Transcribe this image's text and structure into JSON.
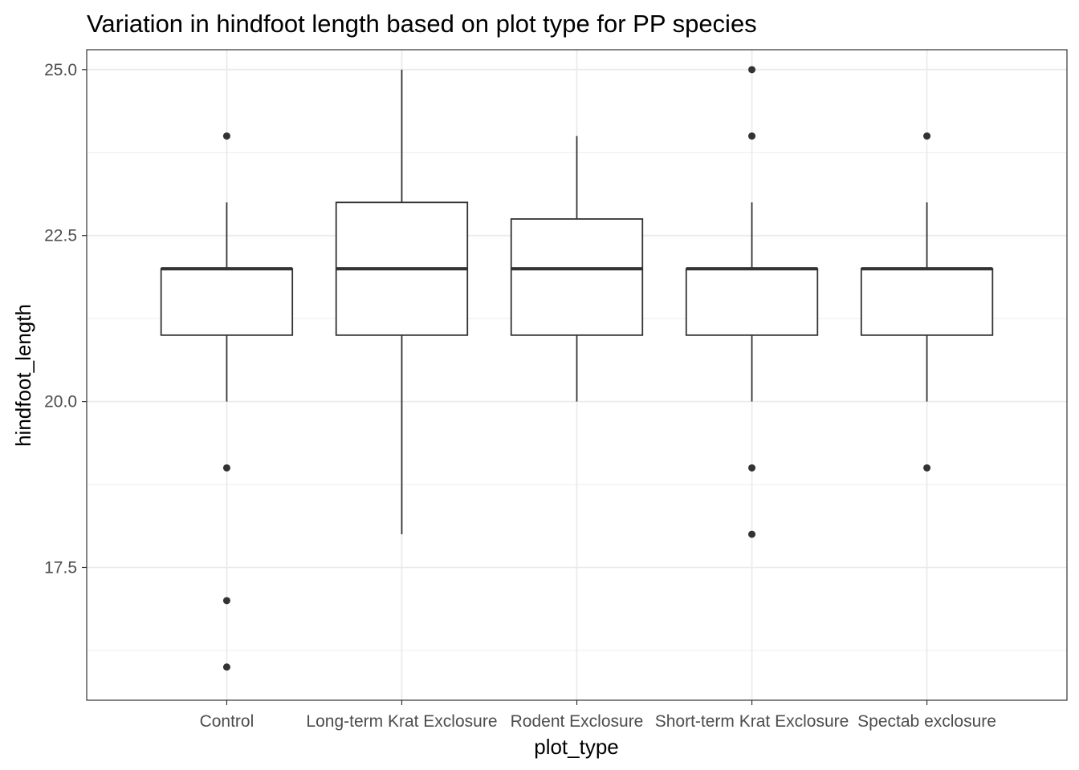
{
  "chart_data": {
    "type": "boxplot",
    "title": "Variation in hindfoot length based on plot type for PP species",
    "xlabel": "plot_type",
    "ylabel": "hindfoot_length",
    "categories": [
      "Control",
      "Long-term Krat Exclosure",
      "Rodent Exclosure",
      "Short-term Krat Exclosure",
      "Spectab exclosure"
    ],
    "ylim": [
      15.5,
      25.3
    ],
    "yticks": [
      17.5,
      20.0,
      22.5,
      25.0
    ],
    "ytick_labels": [
      "17.5",
      "20.0",
      "22.5",
      "25.0"
    ],
    "grid": true,
    "colors": {
      "box_line": "#333333",
      "point": "#333333",
      "grid": "#ebebeb",
      "panel_border": "#333333"
    },
    "boxes": [
      {
        "category": "Control",
        "whisker_low": 20,
        "q1": 21,
        "median": 22,
        "q3": 22,
        "whisker_high": 23,
        "outliers": [
          24,
          19,
          17,
          16
        ]
      },
      {
        "category": "Long-term Krat Exclosure",
        "whisker_low": 18,
        "q1": 21,
        "median": 22,
        "q3": 23,
        "whisker_high": 25,
        "outliers": []
      },
      {
        "category": "Rodent Exclosure",
        "whisker_low": 20,
        "q1": 21,
        "median": 22,
        "q3": 22.75,
        "whisker_high": 24,
        "outliers": []
      },
      {
        "category": "Short-term Krat Exclosure",
        "whisker_low": 20,
        "q1": 21,
        "median": 22,
        "q3": 22,
        "whisker_high": 23,
        "outliers": [
          25,
          24,
          19,
          18
        ]
      },
      {
        "category": "Spectab exclosure",
        "whisker_low": 20,
        "q1": 21,
        "median": 22,
        "q3": 22,
        "whisker_high": 23,
        "outliers": [
          24,
          19
        ]
      }
    ]
  }
}
